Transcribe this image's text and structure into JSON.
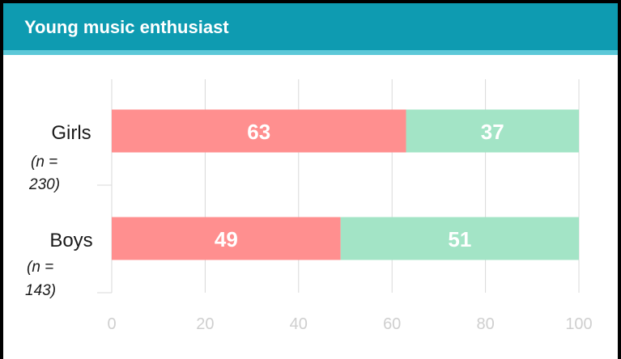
{
  "title": "Young music enthusiast",
  "colors": {
    "header": "#0e9bb1",
    "seg1": "#ff8f8f",
    "seg2": "#a3e4c6"
  },
  "chart_data": {
    "type": "bar",
    "orientation": "horizontal",
    "stacked": true,
    "categories": [
      "Girls",
      "Boys"
    ],
    "category_notes": [
      [
        "(n =",
        "230)"
      ],
      [
        "(n =",
        "143)"
      ]
    ],
    "series": [
      {
        "values": [
          63,
          49
        ]
      },
      {
        "values": [
          37,
          51
        ]
      }
    ],
    "xlim": [
      0,
      100
    ],
    "xticks": [
      0,
      20,
      40,
      60,
      80,
      100
    ],
    "grid": true,
    "data_labels": true
  }
}
